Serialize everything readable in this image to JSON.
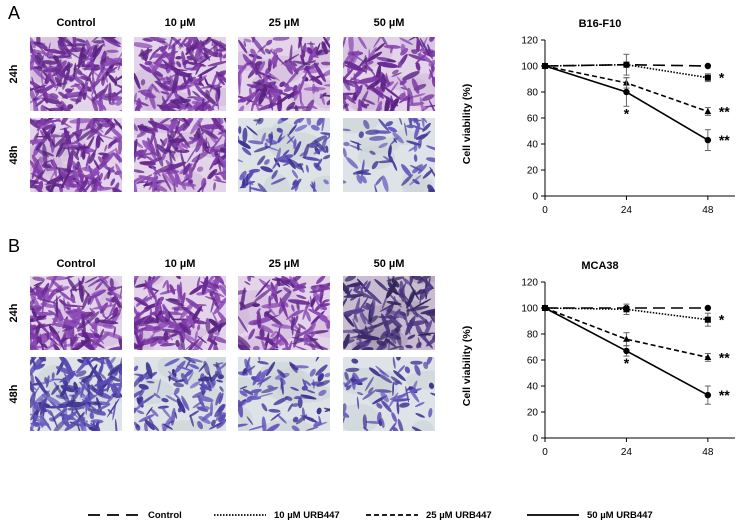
{
  "panels": [
    {
      "letter": "A",
      "col_labels": [
        "Control",
        "10 µM",
        "25 µM",
        "50 µM"
      ],
      "row_labels": [
        "24h",
        "48h"
      ],
      "micrographs": {
        "24h": [
          {
            "density": 0.95,
            "tone": "purple"
          },
          {
            "density": 0.85,
            "tone": "purple"
          },
          {
            "density": 0.62,
            "tone": "purple"
          },
          {
            "density": 0.55,
            "tone": "purple"
          }
        ],
        "48h": [
          {
            "density": 0.92,
            "tone": "purple"
          },
          {
            "density": 0.78,
            "tone": "purple"
          },
          {
            "density": 0.35,
            "tone": "blue"
          },
          {
            "density": 0.22,
            "tone": "blue"
          }
        ]
      }
    },
    {
      "letter": "B",
      "col_labels": [
        "Control",
        "10 µM",
        "25 µM",
        "50 µM"
      ],
      "row_labels": [
        "24h",
        "48h"
      ],
      "micrographs": {
        "24h": [
          {
            "density": 0.9,
            "tone": "purple"
          },
          {
            "density": 0.75,
            "tone": "purple"
          },
          {
            "density": 0.55,
            "tone": "purple"
          },
          {
            "density": 0.6,
            "tone": "dark"
          }
        ],
        "48h": [
          {
            "density": 0.9,
            "tone": "blue"
          },
          {
            "density": 0.45,
            "tone": "blue"
          },
          {
            "density": 0.3,
            "tone": "blue"
          },
          {
            "density": 0.22,
            "tone": "blue"
          }
        ]
      }
    }
  ],
  "chart_data": [
    {
      "type": "line",
      "title": "B16-F10",
      "xlabel": "",
      "ylabel": "Cell viability (%)",
      "x": [
        0,
        24,
        48
      ],
      "xticks": [
        "0",
        "24",
        "48"
      ],
      "ylim": [
        0,
        120
      ],
      "yticks": [
        "0",
        "20",
        "40",
        "60",
        "80",
        "100",
        "120"
      ],
      "series": [
        {
          "name": "Control",
          "values": [
            100,
            101,
            100
          ],
          "errors": [
            0,
            1,
            0
          ],
          "marker": "circle",
          "dash": "long-dash"
        },
        {
          "name": "10 µM URB447",
          "values": [
            100,
            101,
            91
          ],
          "errors": [
            0,
            8,
            3
          ],
          "marker": "square",
          "dash": "dot",
          "sig": [
            "",
            "",
            "*"
          ]
        },
        {
          "name": "25 µM URB447",
          "values": [
            100,
            87,
            65
          ],
          "errors": [
            0,
            4,
            3
          ],
          "marker": "triangle",
          "dash": "dash",
          "sig": [
            "",
            "",
            "**"
          ]
        },
        {
          "name": "50 µM URB447",
          "values": [
            100,
            80,
            43
          ],
          "errors": [
            0,
            11,
            8
          ],
          "marker": "circle",
          "dash": "solid",
          "sig": [
            "",
            "*",
            "**"
          ]
        }
      ]
    },
    {
      "type": "line",
      "title": "MCA38",
      "xlabel": "",
      "ylabel": "Cell viability (%)",
      "x": [
        0,
        24,
        48
      ],
      "xticks": [
        "0",
        "24",
        "48"
      ],
      "ylim": [
        0,
        120
      ],
      "yticks": [
        "0",
        "20",
        "40",
        "60",
        "80",
        "100",
        "120"
      ],
      "series": [
        {
          "name": "Control",
          "values": [
            100,
            100,
            100
          ],
          "errors": [
            0,
            1,
            0
          ],
          "marker": "circle",
          "dash": "long-dash"
        },
        {
          "name": "10 µM URB447",
          "values": [
            100,
            99,
            91
          ],
          "errors": [
            0,
            4,
            5
          ],
          "marker": "square",
          "dash": "dot",
          "sig": [
            "",
            "",
            "*"
          ]
        },
        {
          "name": "25 µM URB447",
          "values": [
            100,
            76,
            62
          ],
          "errors": [
            0,
            5,
            3
          ],
          "marker": "triangle",
          "dash": "dash",
          "sig": [
            "",
            "",
            "**"
          ]
        },
        {
          "name": "50 µM URB447",
          "values": [
            100,
            67,
            33
          ],
          "errors": [
            0,
            4,
            7
          ],
          "marker": "circle",
          "dash": "solid",
          "sig": [
            "",
            "*",
            "**"
          ]
        }
      ]
    }
  ],
  "legend": [
    "Control",
    "10 µM URB447",
    "25 µM URB447",
    "50 µM URB447"
  ]
}
